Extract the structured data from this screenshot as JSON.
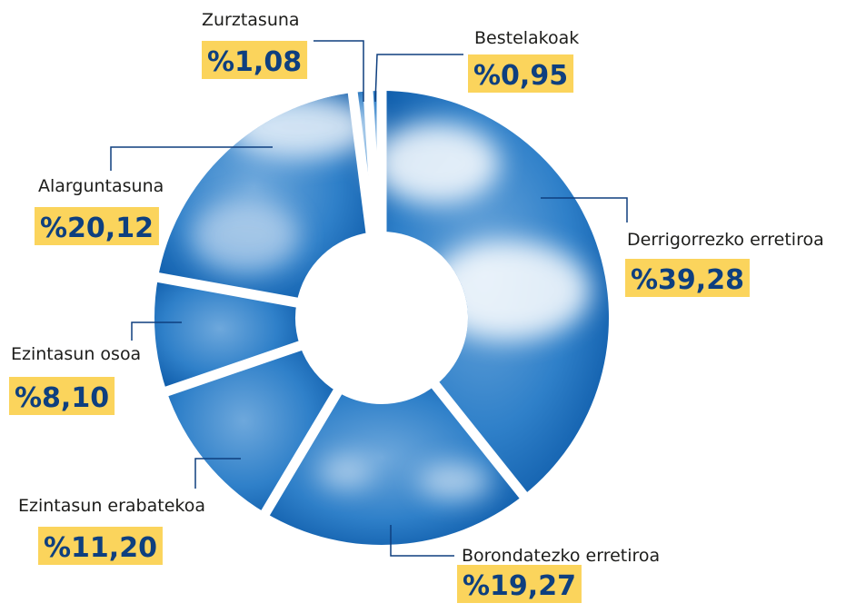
{
  "chart_data": {
    "type": "donut",
    "categories": [
      "Derrigorrezko erretiroa",
      "Borondatezko erretiroa",
      "Ezintasun erabatekoa",
      "Ezintasun osoa",
      "Alarguntasuna",
      "Zurztasuna",
      "Bestelakoak"
    ],
    "values": [
      39.28,
      19.27,
      11.2,
      8.1,
      20.12,
      1.08,
      0.95
    ],
    "value_labels": [
      "%39,28",
      "%19,27",
      "%11,20",
      "%8,10",
      "%20,12",
      "%1,08",
      "%0,95"
    ],
    "color": "#1a6fc0"
  }
}
